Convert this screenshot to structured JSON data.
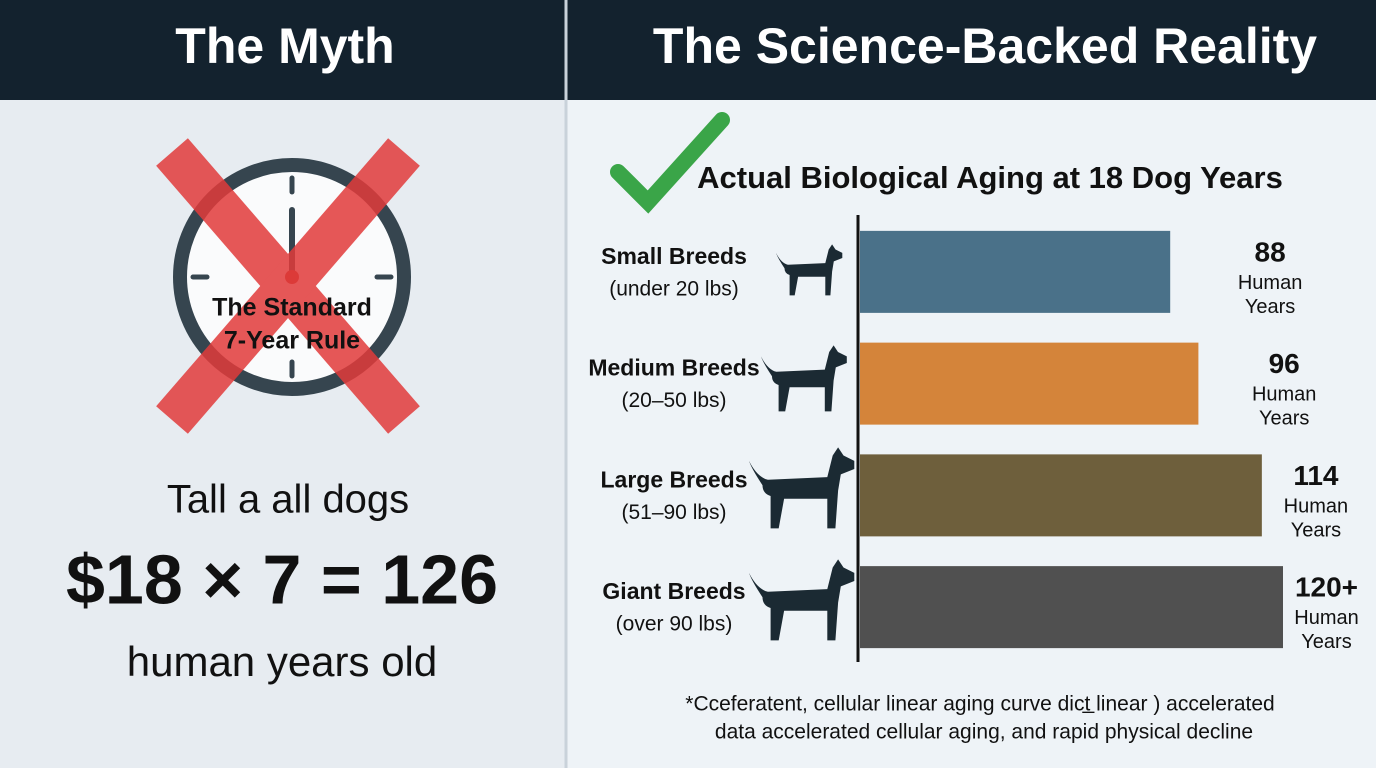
{
  "myth": {
    "title": "The Myth",
    "clock_label": [
      "The Standard",
      "7-Year Rule"
    ],
    "line1": "Tall a all dogs",
    "equation": "$18 × 7 = 126",
    "line3": "human years old"
  },
  "reality": {
    "title": "The Science-Backed Reality",
    "footnote": [
      "*Cceferatent,  cellular linear aging curve dict̲ linear ) accelerated",
      "data accelerated cellular aging,  and rapid physical decline"
    ]
  },
  "chart_data": {
    "type": "bar",
    "orientation": "horizontal",
    "title": "Actual Biological Aging at 18 Dog Years",
    "categories": [
      "Small Breeds",
      "Medium Breeds",
      "Large Breeds",
      "Giant Breeds"
    ],
    "category_notes": [
      "(under 20 lbs)",
      "(20–50 lbs)",
      "(51–90 lbs)",
      "(over 90 lbs)"
    ],
    "values": [
      88,
      96,
      114,
      120
    ],
    "value_labels": [
      "88",
      "96",
      "114",
      "120+"
    ],
    "value_unit": "Human Years",
    "colors": [
      "#4a7189",
      "#d4843a",
      "#6e5f3c",
      "#505050"
    ]
  }
}
